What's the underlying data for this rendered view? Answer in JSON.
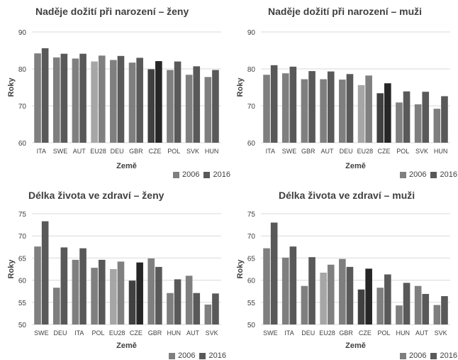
{
  "colors": {
    "y2006": "#7f7f7f",
    "y2016": "#595959",
    "eu2006": "#a6a6a6",
    "eu2016": "#808080",
    "cze2006": "#404040",
    "cze2016": "#262626",
    "grid": "#d9d9d9",
    "text": "#404040"
  },
  "chart_data": [
    {
      "type": "bar",
      "title": "Naděje dožití při narození – ženy",
      "xlabel": "Země",
      "ylabel": "Roky",
      "ylim": [
        60,
        90
      ],
      "yticks": [
        60,
        70,
        80,
        90
      ],
      "grid": true,
      "legend": "bottom-right",
      "highlight": {
        "EU28": "eu",
        "CZE": "cze"
      },
      "categories": [
        "ITA",
        "SWE",
        "AUT",
        "EU28",
        "DEU",
        "GBR",
        "CZE",
        "POL",
        "SVK",
        "HUN"
      ],
      "series": [
        {
          "name": "2006",
          "values": [
            84.2,
            83.1,
            82.8,
            82.0,
            82.4,
            81.7,
            79.9,
            79.7,
            78.4,
            77.8
          ]
        },
        {
          "name": "2016",
          "values": [
            85.6,
            84.1,
            84.1,
            83.6,
            83.5,
            83.0,
            82.1,
            82.0,
            80.7,
            79.7
          ]
        }
      ]
    },
    {
      "type": "bar",
      "title": "Naděje dožití při narození – muži",
      "xlabel": "Země",
      "ylabel": "Roky",
      "ylim": [
        60,
        90
      ],
      "yticks": [
        60,
        70,
        80,
        90
      ],
      "grid": true,
      "legend": "bottom-right",
      "highlight": {
        "EU28": "eu",
        "CZE": "cze"
      },
      "categories": [
        "ITA",
        "SWE",
        "GBR",
        "AUT",
        "DEU",
        "EU28",
        "CZE",
        "POL",
        "SVK",
        "HUN"
      ],
      "series": [
        {
          "name": "2006",
          "values": [
            78.4,
            78.8,
            77.2,
            77.2,
            77.1,
            75.6,
            73.4,
            70.9,
            70.4,
            69.2
          ]
        },
        {
          "name": "2016",
          "values": [
            81.0,
            80.6,
            79.4,
            79.3,
            78.6,
            78.2,
            76.1,
            73.9,
            73.8,
            72.6
          ]
        }
      ]
    },
    {
      "type": "bar",
      "title": "Délka života ve zdraví – ženy",
      "xlabel": "Země",
      "ylabel": "Roky",
      "ylim": [
        50,
        75
      ],
      "yticks": [
        50,
        55,
        60,
        65,
        70,
        75
      ],
      "grid": true,
      "legend": "bottom-right",
      "highlight": {
        "EU28": "eu",
        "CZE": "cze"
      },
      "categories": [
        "SWE",
        "DEU",
        "ITA",
        "POL",
        "EU28",
        "CZE",
        "GBR",
        "HUN",
        "AUT",
        "SVK"
      ],
      "series": [
        {
          "name": "2006",
          "values": [
            67.6,
            58.3,
            64.6,
            62.8,
            62.5,
            59.9,
            64.9,
            57.1,
            61.0,
            54.5
          ]
        },
        {
          "name": "2016",
          "values": [
            73.3,
            67.4,
            67.2,
            64.6,
            64.2,
            64.0,
            63.0,
            60.2,
            57.1,
            57.0
          ]
        }
      ]
    },
    {
      "type": "bar",
      "title": "Délka života ve zdraví – muži",
      "xlabel": "Země",
      "ylabel": "Roky",
      "ylim": [
        50,
        75
      ],
      "yticks": [
        50,
        55,
        60,
        65,
        70,
        75
      ],
      "grid": true,
      "legend": "bottom-right",
      "highlight": {
        "EU28": "eu",
        "CZE": "cze"
      },
      "categories": [
        "SWE",
        "ITA",
        "DEU",
        "EU28",
        "GBR",
        "CZE",
        "POL",
        "HUN",
        "AUT",
        "SVK"
      ],
      "series": [
        {
          "name": "2006",
          "values": [
            67.2,
            65.1,
            58.7,
            61.7,
            64.8,
            57.9,
            58.3,
            54.3,
            58.7,
            54.4
          ]
        },
        {
          "name": "2016",
          "values": [
            73.0,
            67.6,
            65.2,
            63.5,
            63.0,
            62.6,
            61.3,
            59.4,
            56.9,
            56.4
          ]
        }
      ]
    }
  ]
}
